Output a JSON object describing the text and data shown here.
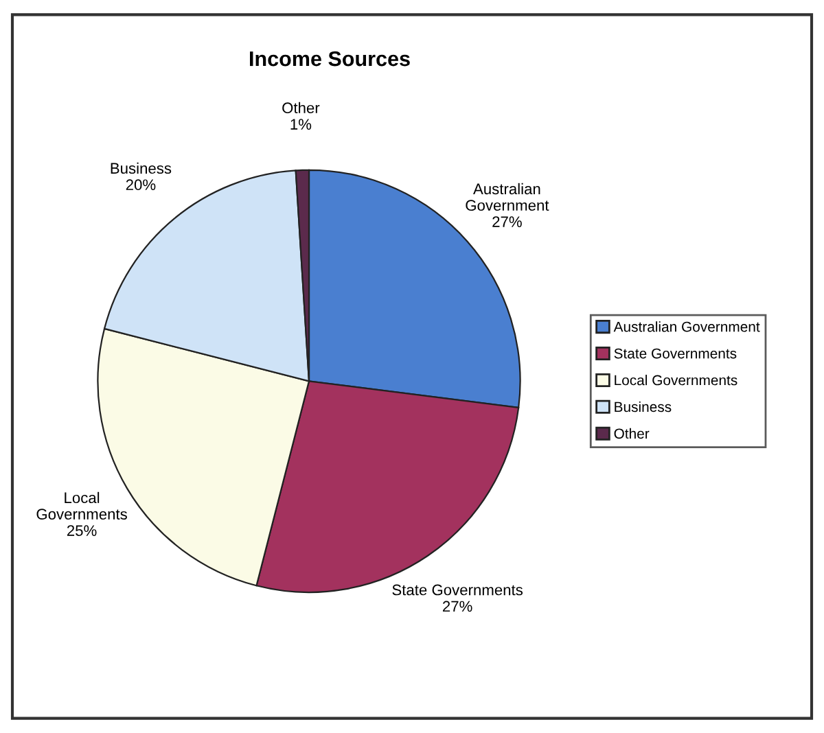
{
  "chart_data": {
    "type": "pie",
    "title": "Income Sources",
    "categories": [
      "Australian Government",
      "State Governments",
      "Local Governments",
      "Business",
      "Other"
    ],
    "values": [
      27,
      27,
      25,
      20,
      1
    ],
    "colors": [
      "#4a7fd0",
      "#a3325e",
      "#fbfbe6",
      "#cfe3f7",
      "#5b2a4c"
    ],
    "value_labels": [
      "Australian\nGovernment\n27%",
      "State Governments\n27%",
      "Local\nGovernments\n25%",
      "Business\n20%",
      "Other\n1%"
    ],
    "legend": "right"
  }
}
